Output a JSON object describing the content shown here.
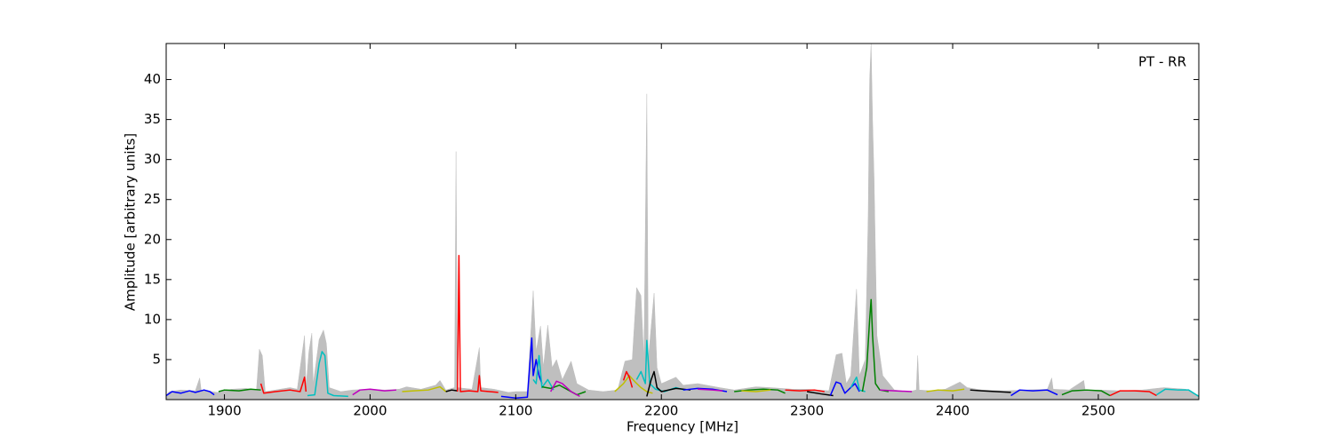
{
  "chart_data": {
    "type": "line",
    "annotation": "PT - RR",
    "xlabel": "Frequency [MHz]",
    "ylabel": "Amplitude [arbitrary units]",
    "xlim": [
      1860,
      2569
    ],
    "ylim": [
      0,
      44.5
    ],
    "xticks": [
      1900,
      2000,
      2100,
      2200,
      2300,
      2400,
      2500
    ],
    "yticks": [
      5,
      10,
      15,
      20,
      25,
      30,
      35,
      40
    ],
    "series": [
      {
        "color": "#bfbfbf",
        "fill": true,
        "x": [
          1860,
          1862,
          1870,
          1880,
          1883,
          1884,
          1895,
          1905,
          1915,
          1922,
          1924,
          1926,
          1928,
          1935,
          1945,
          1950,
          1955,
          1956,
          1958,
          1960,
          1961,
          1965,
          1968,
          1970,
          1972,
          1980,
          1988,
          2000,
          2010,
          2020,
          2025,
          2035,
          2045,
          2048,
          2052,
          2058,
          2059,
          2060,
          2065,
          2070,
          2075,
          2076,
          2085,
          2095,
          2100,
          2108,
          2112,
          2114,
          2117,
          2119,
          2122,
          2125,
          2128,
          2132,
          2138,
          2142,
          2150,
          2160,
          2170,
          2175,
          2180,
          2183,
          2186,
          2188,
          2190,
          2191,
          2195,
          2197,
          2200,
          2210,
          2215,
          2225,
          2240,
          2250,
          2265,
          2275,
          2290,
          2300,
          2315,
          2320,
          2324,
          2327,
          2330,
          2334,
          2336,
          2340,
          2342,
          2343,
          2344,
          2345,
          2346,
          2348,
          2352,
          2360,
          2370,
          2375,
          2376,
          2377,
          2385,
          2395,
          2405,
          2410,
          2420,
          2435,
          2450,
          2465,
          2468,
          2469,
          2480,
          2490,
          2491,
          2500,
          2515,
          2530,
          2545,
          2560,
          2569
        ],
        "values": [
          0.5,
          1.0,
          1.2,
          1.1,
          2.7,
          1.2,
          0.9,
          1.3,
          1.4,
          1.2,
          6.3,
          5.5,
          1.0,
          1.2,
          1.5,
          1.3,
          8.0,
          1.5,
          6,
          8.3,
          2,
          7.5,
          8.7,
          7,
          1.5,
          1.0,
          1.2,
          1.3,
          1.2,
          1.3,
          1.6,
          1.3,
          1.8,
          2.4,
          1.2,
          1.5,
          31,
          1.5,
          1.4,
          1.3,
          6.5,
          1.5,
          1.3,
          0.9,
          1.0,
          1.0,
          13.6,
          6,
          9.2,
          4,
          9.3,
          4,
          5,
          2.5,
          4.8,
          2,
          1.2,
          1.0,
          1.2,
          4.8,
          5,
          14,
          13,
          5,
          38.2,
          5,
          13.3,
          4,
          2,
          2.8,
          1.8,
          2,
          1.5,
          1.2,
          1.6,
          1.5,
          1.3,
          1.3,
          1.1,
          5.6,
          5.8,
          2,
          3,
          13.8,
          3,
          5,
          23,
          40,
          44.5,
          35,
          28,
          8,
          3,
          1.2,
          1.0,
          1.2,
          5.5,
          1.2,
          1.1,
          1.3,
          2.2,
          1.5,
          1.2,
          1.1,
          1.2,
          1.3,
          2.7,
          1.3,
          1.2,
          2.4,
          1.2,
          1.2,
          1.1,
          1.2,
          1.5,
          1.3,
          0.5
        ]
      },
      {
        "color": "#0000ff",
        "x": [
          1860,
          1864,
          1870,
          1876,
          1880,
          1886,
          1890,
          1893
        ],
        "values": [
          0.5,
          1.0,
          0.8,
          1.1,
          0.9,
          1.2,
          1.0,
          0.6
        ]
      },
      {
        "color": "#008000",
        "x": [
          1896,
          1900,
          1910,
          1918,
          1925
        ],
        "values": [
          1.0,
          1.2,
          1.1,
          1.3,
          1.2
        ]
      },
      {
        "color": "#ff0000",
        "x": [
          1925,
          1927,
          1935,
          1945,
          1952,
          1955,
          1956
        ],
        "values": [
          2.0,
          0.8,
          1.0,
          1.2,
          1.0,
          2.8,
          1.0
        ]
      },
      {
        "color": "#00bfbf",
        "x": [
          1957,
          1962,
          1965,
          1967,
          1969,
          1971,
          1975,
          1985
        ],
        "values": [
          0.5,
          0.6,
          4.5,
          6.0,
          5.5,
          0.8,
          0.5,
          0.4
        ]
      },
      {
        "color": "#bf00bf",
        "x": [
          1988,
          1993,
          2000,
          2010,
          2018
        ],
        "values": [
          0.6,
          1.2,
          1.3,
          1.1,
          1.2
        ]
      },
      {
        "color": "#bfbf00",
        "x": [
          2022,
          2030,
          2040,
          2048,
          2052
        ],
        "values": [
          1.0,
          1.1,
          1.2,
          1.6,
          1.0
        ]
      },
      {
        "color": "#000000",
        "x": [
          2052,
          2056,
          2060
        ],
        "values": [
          1.0,
          1.2,
          1.1
        ]
      },
      {
        "color": "#ff0000",
        "x": [
          2060,
          2061,
          2062,
          2068,
          2074,
          2075,
          2076,
          2082,
          2088
        ],
        "values": [
          1.0,
          18.0,
          1.0,
          1.1,
          1.0,
          3.0,
          1.1,
          1.0,
          0.9
        ]
      },
      {
        "color": "#0000ff",
        "x": [
          2090,
          2100,
          2108,
          2111,
          2112,
          2114,
          2116,
          2118
        ],
        "values": [
          0.4,
          0.2,
          0.3,
          7.7,
          3,
          5,
          3,
          2.0
        ]
      },
      {
        "color": "#00bfbf",
        "x": [
          2112,
          2114,
          2116,
          2118,
          2122,
          2126
        ],
        "values": [
          2.5,
          2.0,
          5.5,
          1.5,
          2.5,
          1.2
        ]
      },
      {
        "color": "#008000",
        "x": [
          2118,
          2124,
          2130,
          2136,
          2142,
          2148
        ],
        "values": [
          1.6,
          1.4,
          1.8,
          1.2,
          0.6,
          1.0
        ]
      },
      {
        "color": "#bf00bf",
        "x": [
          2124,
          2128,
          2132,
          2138,
          2144
        ],
        "values": [
          1.0,
          2.3,
          2.0,
          1.0,
          0.4
        ]
      },
      {
        "color": "#bfbf00",
        "x": [
          2168,
          2174,
          2178,
          2182,
          2186,
          2190,
          2194
        ],
        "values": [
          1.0,
          2.0,
          3.0,
          2.2,
          1.5,
          1.0,
          0.8
        ]
      },
      {
        "color": "#ff0000",
        "x": [
          2174,
          2176,
          2178,
          2180
        ],
        "values": [
          2.4,
          3.5,
          2.8,
          1.5
        ]
      },
      {
        "color": "#00bfbf",
        "x": [
          2183,
          2186,
          2189,
          2190,
          2192,
          2196,
          2202,
          2210,
          2216
        ],
        "values": [
          2.5,
          3.5,
          2.0,
          7.4,
          2.0,
          1.3,
          1.0,
          1.5,
          1.2
        ]
      },
      {
        "color": "#000000",
        "x": [
          2190,
          2193,
          2195,
          2197,
          2200,
          2210,
          2220
        ],
        "values": [
          0.4,
          2.5,
          3.5,
          1.5,
          1.0,
          1.4,
          1.2
        ]
      },
      {
        "color": "#0000ff",
        "x": [
          2215,
          2225,
          2235,
          2245
        ],
        "values": [
          1.2,
          1.4,
          1.3,
          1.0
        ]
      },
      {
        "color": "#bf00bf",
        "x": [
          2225,
          2235,
          2242
        ],
        "values": [
          1.3,
          1.2,
          1.1
        ]
      },
      {
        "color": "#008000",
        "x": [
          2250,
          2260,
          2270,
          2280,
          2285
        ],
        "values": [
          1.0,
          1.2,
          1.3,
          1.2,
          0.8
        ]
      },
      {
        "color": "#bfbf00",
        "x": [
          2255,
          2265,
          2275
        ],
        "values": [
          1.1,
          1.0,
          1.2
        ]
      },
      {
        "color": "#ff0000",
        "x": [
          2285,
          2295,
          2305,
          2312
        ],
        "values": [
          1.2,
          1.1,
          1.2,
          1.0
        ]
      },
      {
        "color": "#000000",
        "x": [
          2300,
          2310,
          2318
        ],
        "values": [
          1.0,
          0.7,
          0.5
        ]
      },
      {
        "color": "#0000ff",
        "x": [
          2316,
          2320,
          2323,
          2326,
          2330,
          2333,
          2336
        ],
        "values": [
          0.5,
          2.2,
          2.0,
          0.8,
          1.5,
          2.0,
          1.0
        ]
      },
      {
        "color": "#00bfbf",
        "x": [
          2330,
          2334,
          2336,
          2340
        ],
        "values": [
          1.5,
          2.8,
          1.2,
          1.0
        ]
      },
      {
        "color": "#008000",
        "x": [
          2338,
          2341,
          2343,
          2344,
          2345,
          2347,
          2350,
          2356
        ],
        "values": [
          1.0,
          4.0,
          10,
          12.5,
          8,
          2.0,
          1.2,
          1.0
        ]
      },
      {
        "color": "#bf00bf",
        "x": [
          2350,
          2360,
          2372
        ],
        "values": [
          1.2,
          1.1,
          1.0
        ]
      },
      {
        "color": "#bfbf00",
        "x": [
          2382,
          2390,
          2400,
          2408
        ],
        "values": [
          1.0,
          1.2,
          1.1,
          1.3
        ]
      },
      {
        "color": "#000000",
        "x": [
          2412,
          2420,
          2430,
          2440
        ],
        "values": [
          1.2,
          1.1,
          1.0,
          0.9
        ]
      },
      {
        "color": "#0000ff",
        "x": [
          2440,
          2446,
          2455,
          2465,
          2472
        ],
        "values": [
          0.5,
          1.2,
          1.1,
          1.2,
          0.6
        ]
      },
      {
        "color": "#008000",
        "x": [
          2475,
          2482,
          2492,
          2502,
          2508
        ],
        "values": [
          0.6,
          1.1,
          1.2,
          1.1,
          0.5
        ]
      },
      {
        "color": "#ff0000",
        "x": [
          2508,
          2515,
          2525,
          2535,
          2540
        ],
        "values": [
          0.5,
          1.1,
          1.1,
          1.0,
          0.5
        ]
      },
      {
        "color": "#00bfbf",
        "x": [
          2540,
          2546,
          2555,
          2562,
          2569
        ],
        "values": [
          0.6,
          1.3,
          1.2,
          1.2,
          0.4
        ]
      }
    ]
  }
}
